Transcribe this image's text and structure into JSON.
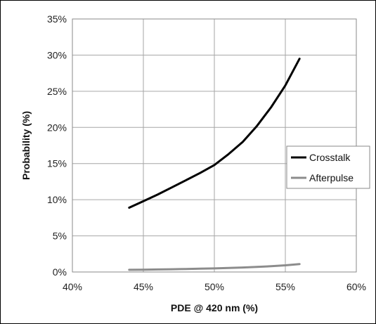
{
  "chart_data": {
    "type": "line",
    "xlabel": "PDE @ 420 nm (%)",
    "ylabel": "Probability (%)",
    "xlim": [
      40,
      60
    ],
    "ylim": [
      0,
      35
    ],
    "x_ticks": [
      40,
      45,
      50,
      55,
      60
    ],
    "y_ticks": [
      0,
      5,
      10,
      15,
      20,
      25,
      30,
      35
    ],
    "x_tick_labels": [
      "40%",
      "45%",
      "50%",
      "55%",
      "60%"
    ],
    "y_tick_labels": [
      "0%",
      "5%",
      "10%",
      "15%",
      "20%",
      "25%",
      "30%",
      "35%"
    ],
    "grid": true,
    "legend_position": "right",
    "series": [
      {
        "name": "Crosstalk",
        "color": "#000000",
        "x": [
          44,
          45,
          46,
          47,
          48,
          49,
          50,
          51,
          52,
          53,
          54,
          55,
          56
        ],
        "y": [
          8.9,
          9.8,
          10.7,
          11.7,
          12.7,
          13.7,
          14.8,
          16.3,
          18.0,
          20.2,
          22.8,
          25.8,
          29.5
        ]
      },
      {
        "name": "Afterpulse",
        "color": "#8c8c8c",
        "x": [
          44,
          45,
          46,
          47,
          48,
          49,
          50,
          51,
          52,
          53,
          54,
          55,
          56
        ],
        "y": [
          0.3,
          0.32,
          0.35,
          0.38,
          0.42,
          0.46,
          0.5,
          0.56,
          0.62,
          0.7,
          0.8,
          0.92,
          1.1
        ]
      }
    ]
  }
}
